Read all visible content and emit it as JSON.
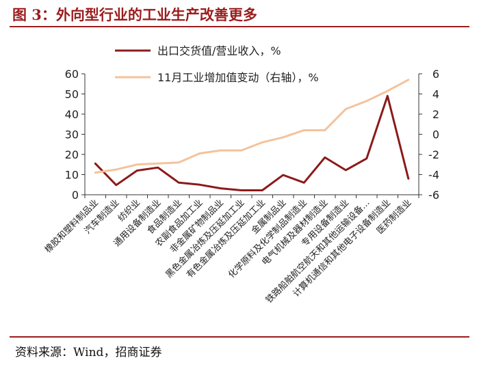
{
  "page": {
    "title": "图 3：外向型行业的工业生产改善更多",
    "source": "资料来源：Wind，招商证券"
  },
  "colors": {
    "accent": "#9b1c1c",
    "series1": "#8b1a1a",
    "series2": "#f5c29a"
  },
  "chart_data": {
    "type": "line",
    "categories": [
      "橡胶和塑料制品业",
      "汽车制造业",
      "纺织业",
      "通用设备制造业",
      "食品制造业",
      "农副食品加工业",
      "非金属矿物制品业",
      "黑色金属冶炼及压延加工业",
      "有色金属冶炼及压延加工业",
      "金属制品业",
      "化学原料及化学制品制造业",
      "电气机械及器材制造业",
      "专用设备制造业",
      "铁路船舶航空航天和其他运输设备…",
      "计算机通信和其他电子设备制造业",
      "医药制造业"
    ],
    "series": [
      {
        "name": "出口交货值/营业收入，%",
        "axis": "left",
        "color": "#8b1a1a",
        "values": [
          15.5,
          4.8,
          12,
          13.5,
          6,
          5,
          3.2,
          2.2,
          2.2,
          9.8,
          6,
          18.5,
          12.2,
          18,
          49,
          8
        ]
      },
      {
        "name": "11月工业增加值变动（右轴），%",
        "axis": "right",
        "color": "#f5c29a",
        "values": [
          -3.8,
          -3.5,
          -3.0,
          -2.9,
          -2.8,
          -1.9,
          -1.6,
          -1.6,
          -0.8,
          -0.3,
          0.4,
          0.4,
          2.5,
          3.3,
          4.3,
          5.4
        ]
      }
    ],
    "y_left": {
      "lim": [
        0,
        60
      ],
      "ticks": [
        "0",
        "10",
        "20",
        "30",
        "40",
        "50",
        "60"
      ]
    },
    "y_right": {
      "lim": [
        -6,
        6
      ],
      "ticks": [
        "-6",
        "-4",
        "-2",
        "0",
        "2",
        "4",
        "6"
      ]
    },
    "grid": false,
    "legend": "top"
  }
}
